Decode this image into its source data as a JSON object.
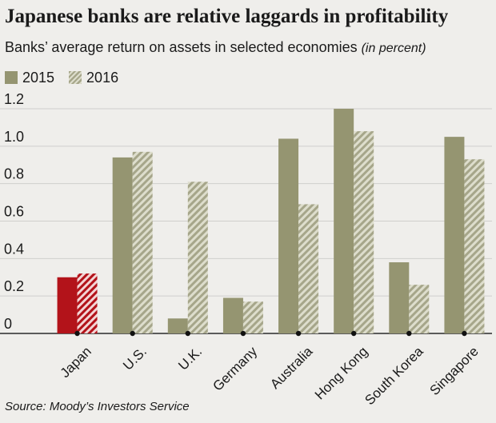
{
  "title": "Japanese banks are relative laggards in profitability",
  "subtitle": "Banks’ average return on assets in selected economies",
  "subtitle_unit": "(in percent)",
  "source": "Source: Moody’s Investors Service",
  "colors": {
    "series_2015": "#959571",
    "series_2016_stripe_dark": "#a6a68a",
    "series_2016_stripe_light": "#ddddcc",
    "highlight_2015": "#b3131a",
    "highlight_2016_stripe_light": "#f3d5d5",
    "background": "#efeeeb",
    "gridline": "#cfcfcc"
  },
  "chart_data": {
    "type": "bar",
    "title": "Japanese banks are relative laggards in profitability",
    "subtitle": "Banks’ average return on assets in selected economies (in percent)",
    "categories": [
      "Japan",
      "U.S.",
      "U.K.",
      "Germany",
      "Australia",
      "Hong Kong",
      "South Korea",
      "Singapore"
    ],
    "series": [
      {
        "name": "2015",
        "values": [
          0.3,
          0.94,
          0.08,
          0.19,
          1.04,
          1.2,
          0.38,
          1.05
        ]
      },
      {
        "name": "2016",
        "values": [
          0.32,
          0.97,
          0.81,
          0.17,
          0.69,
          1.08,
          0.26,
          0.93
        ]
      }
    ],
    "highlight_category": "Japan",
    "ylim": [
      0,
      1.2
    ],
    "yticks": [
      "0",
      "0.2",
      "0.4",
      "0.6",
      "0.8",
      "1.0",
      "1.2"
    ],
    "xlabel": "",
    "ylabel": "",
    "grid": true,
    "legend_placement": "top-left"
  }
}
